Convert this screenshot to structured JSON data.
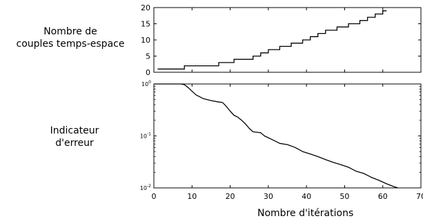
{
  "chart_data": [
    {
      "type": "line",
      "step": true,
      "ylabel": "Nombre de couples temps-espace",
      "ylabel_lines": [
        "Nombre de",
        "couples temps-espace"
      ],
      "xlim": [
        0,
        70
      ],
      "ylim": [
        0,
        20
      ],
      "xticks": [
        0,
        10,
        20,
        30,
        40,
        50,
        60,
        70
      ],
      "yticks": [
        0,
        5,
        10,
        15,
        20
      ],
      "x": [
        1,
        8,
        8,
        17,
        17,
        21,
        21,
        26,
        26,
        28,
        28,
        30,
        30,
        33,
        33,
        36,
        36,
        39,
        39,
        41,
        41,
        43,
        43,
        45,
        45,
        48,
        48,
        51,
        51,
        54,
        54,
        56,
        56,
        58,
        58,
        60,
        60,
        61
      ],
      "y": [
        1,
        1,
        2,
        2,
        3,
        3,
        4,
        4,
        5,
        5,
        6,
        6,
        7,
        7,
        8,
        8,
        9,
        9,
        10,
        10,
        11,
        11,
        12,
        12,
        13,
        13,
        14,
        14,
        15,
        15,
        16,
        16,
        17,
        17,
        18,
        18,
        19,
        19
      ],
      "color": "#000000"
    },
    {
      "type": "line",
      "yscale": "log",
      "ylabel": "Indicateur d'erreur",
      "ylabel_lines": [
        "Indicateur",
        "d'erreur"
      ],
      "xlabel": "Nombre d'itérations",
      "xlim": [
        0,
        70
      ],
      "ylim": [
        0.01,
        1
      ],
      "xticks": [
        0,
        10,
        20,
        30,
        40,
        50,
        60,
        70
      ],
      "yticks": [
        1,
        0.1,
        0.01
      ],
      "ytick_labels": [
        {
          "base": "10",
          "exp": "0"
        },
        {
          "base": "10",
          "exp": "-1"
        },
        {
          "base": "10",
          "exp": "-2"
        }
      ],
      "x": [
        0,
        7,
        8,
        9,
        11,
        13,
        15,
        17,
        18,
        19,
        20,
        21,
        22,
        23,
        24,
        25,
        26,
        27,
        28,
        29,
        31,
        33,
        35,
        37,
        39,
        41,
        43,
        45,
        47,
        49,
        51,
        53,
        55,
        57,
        59,
        61,
        63,
        64
      ],
      "y": [
        1.0,
        1.0,
        0.97,
        0.85,
        0.62,
        0.52,
        0.48,
        0.45,
        0.44,
        0.37,
        0.3,
        0.25,
        0.23,
        0.2,
        0.17,
        0.14,
        0.12,
        0.118,
        0.115,
        0.1,
        0.085,
        0.072,
        0.068,
        0.06,
        0.05,
        0.045,
        0.04,
        0.035,
        0.031,
        0.028,
        0.025,
        0.021,
        0.019,
        0.016,
        0.014,
        0.012,
        0.0105,
        0.01
      ],
      "color": "#000000"
    }
  ]
}
